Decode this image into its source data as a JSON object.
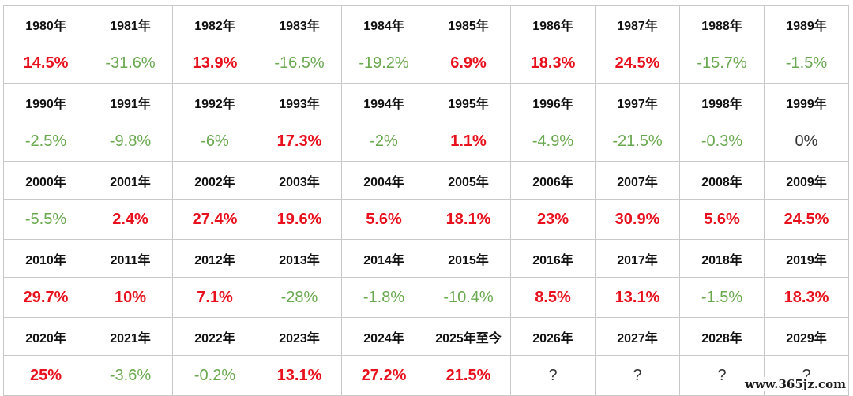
{
  "colors": {
    "up": "#e8101c",
    "down": "#6aa84f",
    "neutral": "#333333",
    "border": "#c9c9c9"
  },
  "rows": [
    {
      "years": [
        "1980年",
        "1981年",
        "1982年",
        "1983年",
        "1984年",
        "1985年",
        "1986年",
        "1987年",
        "1988年",
        "1989年"
      ],
      "returns": [
        "14.5%",
        "-31.6%",
        "13.9%",
        "-16.5%",
        "-19.2%",
        "6.9%",
        "18.3%",
        "24.5%",
        "-15.7%",
        "-1.5%"
      ],
      "trend": [
        "up",
        "down",
        "up",
        "down",
        "down",
        "up",
        "up",
        "up",
        "down",
        "down"
      ]
    },
    {
      "years": [
        "1990年",
        "1991年",
        "1992年",
        "1993年",
        "1994年",
        "1995年",
        "1996年",
        "1997年",
        "1998年",
        "1999年"
      ],
      "returns": [
        "-2.5%",
        "-9.8%",
        "-6%",
        "17.3%",
        "-2%",
        "1.1%",
        "-4.9%",
        "-21.5%",
        "-0.3%",
        "0%"
      ],
      "trend": [
        "down",
        "down",
        "down",
        "up",
        "down",
        "up",
        "down",
        "down",
        "down",
        "flat"
      ]
    },
    {
      "years": [
        "2000年",
        "2001年",
        "2002年",
        "2003年",
        "2004年",
        "2005年",
        "2006年",
        "2007年",
        "2008年",
        "2009年"
      ],
      "returns": [
        "-5.5%",
        "2.4%",
        "27.4%",
        "19.6%",
        "5.6%",
        "18.1%",
        "23%",
        "30.9%",
        "5.6%",
        "24.5%"
      ],
      "trend": [
        "down",
        "up",
        "up",
        "up",
        "up",
        "up",
        "up",
        "up",
        "up",
        "up"
      ]
    },
    {
      "years": [
        "2010年",
        "2011年",
        "2012年",
        "2013年",
        "2014年",
        "2015年",
        "2016年",
        "2017年",
        "2018年",
        "2019年"
      ],
      "returns": [
        "29.7%",
        "10%",
        "7.1%",
        "-28%",
        "-1.8%",
        "-10.4%",
        "8.5%",
        "13.1%",
        "-1.5%",
        "18.3%"
      ],
      "trend": [
        "up",
        "up",
        "up",
        "down",
        "down",
        "down",
        "up",
        "up",
        "down",
        "up"
      ]
    },
    {
      "years": [
        "2020年",
        "2021年",
        "2022年",
        "2023年",
        "2024年",
        "2025年至今",
        "2026年",
        "2027年",
        "2028年",
        "2029年"
      ],
      "returns": [
        "25%",
        "-3.6%",
        "-0.2%",
        "13.1%",
        "27.2%",
        "21.5%",
        "?",
        "?",
        "?",
        "?"
      ],
      "trend": [
        "up",
        "down",
        "down",
        "up",
        "up",
        "up",
        "unknown",
        "unknown",
        "unknown",
        "unknown"
      ]
    }
  ],
  "watermark": "www.365jz.com"
}
